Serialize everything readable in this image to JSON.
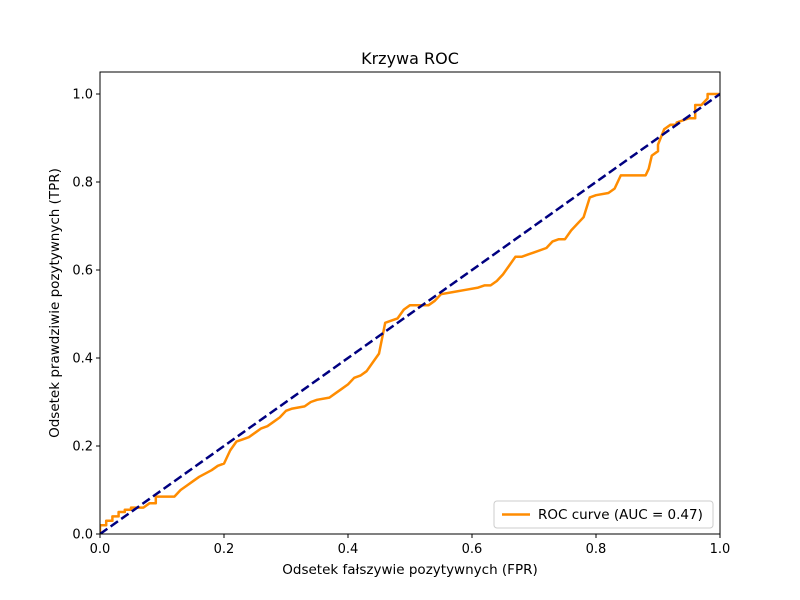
{
  "chart_data": {
    "type": "line",
    "title": "Krzywa ROC",
    "xlabel": "Odsetek fałszywie pozytywnych (FPR)",
    "ylabel": "Odsetek prawdziwie pozytywnych (TPR)",
    "xlim": [
      0.0,
      1.0
    ],
    "ylim": [
      0.0,
      1.05
    ],
    "x_ticks": [
      "0.0",
      "0.2",
      "0.4",
      "0.6",
      "0.8",
      "1.0"
    ],
    "y_ticks": [
      "0.0",
      "0.2",
      "0.4",
      "0.6",
      "0.8",
      "1.0"
    ],
    "grid": false,
    "legend_position": "lower right",
    "series": [
      {
        "name": "ROC curve (AUC = 0.47)",
        "color": "#ff8c00",
        "style": "solid",
        "x": [
          0.0,
          0.0,
          0.01,
          0.01,
          0.02,
          0.02,
          0.03,
          0.03,
          0.04,
          0.04,
          0.05,
          0.05,
          0.06,
          0.06,
          0.07,
          0.08,
          0.09,
          0.09,
          0.1,
          0.11,
          0.12,
          0.13,
          0.14,
          0.15,
          0.16,
          0.18,
          0.19,
          0.2,
          0.21,
          0.22,
          0.23,
          0.24,
          0.25,
          0.26,
          0.27,
          0.28,
          0.29,
          0.3,
          0.31,
          0.33,
          0.34,
          0.35,
          0.37,
          0.38,
          0.39,
          0.4,
          0.41,
          0.42,
          0.43,
          0.44,
          0.45,
          0.46,
          0.47,
          0.48,
          0.49,
          0.5,
          0.52,
          0.53,
          0.54,
          0.55,
          0.57,
          0.59,
          0.61,
          0.62,
          0.63,
          0.64,
          0.65,
          0.66,
          0.67,
          0.68,
          0.69,
          0.7,
          0.72,
          0.73,
          0.74,
          0.75,
          0.76,
          0.78,
          0.79,
          0.8,
          0.82,
          0.83,
          0.84,
          0.85,
          0.86,
          0.87,
          0.88,
          0.885,
          0.89,
          0.9,
          0.9,
          0.91,
          0.92,
          0.93,
          0.93,
          0.95,
          0.96,
          0.96,
          0.97,
          0.98,
          0.98,
          0.99,
          1.0
        ],
        "y": [
          0.0,
          0.02,
          0.02,
          0.03,
          0.03,
          0.04,
          0.04,
          0.05,
          0.05,
          0.055,
          0.055,
          0.06,
          0.06,
          0.06,
          0.06,
          0.07,
          0.07,
          0.085,
          0.085,
          0.085,
          0.085,
          0.1,
          0.11,
          0.12,
          0.13,
          0.145,
          0.155,
          0.16,
          0.19,
          0.21,
          0.215,
          0.22,
          0.23,
          0.24,
          0.245,
          0.255,
          0.265,
          0.28,
          0.285,
          0.29,
          0.3,
          0.305,
          0.31,
          0.32,
          0.33,
          0.34,
          0.355,
          0.36,
          0.37,
          0.39,
          0.41,
          0.48,
          0.485,
          0.49,
          0.51,
          0.52,
          0.52,
          0.52,
          0.53,
          0.545,
          0.55,
          0.555,
          0.56,
          0.565,
          0.565,
          0.575,
          0.59,
          0.61,
          0.63,
          0.63,
          0.635,
          0.64,
          0.65,
          0.665,
          0.67,
          0.67,
          0.69,
          0.72,
          0.765,
          0.77,
          0.775,
          0.785,
          0.815,
          0.815,
          0.815,
          0.815,
          0.815,
          0.83,
          0.86,
          0.87,
          0.885,
          0.92,
          0.93,
          0.93,
          0.935,
          0.945,
          0.945,
          0.975,
          0.975,
          0.99,
          1.0,
          1.0,
          1.0
        ]
      },
      {
        "name": "",
        "color": "#000080",
        "style": "dashed",
        "x": [
          0.0,
          1.0
        ],
        "y": [
          0.0,
          1.0
        ]
      }
    ]
  }
}
